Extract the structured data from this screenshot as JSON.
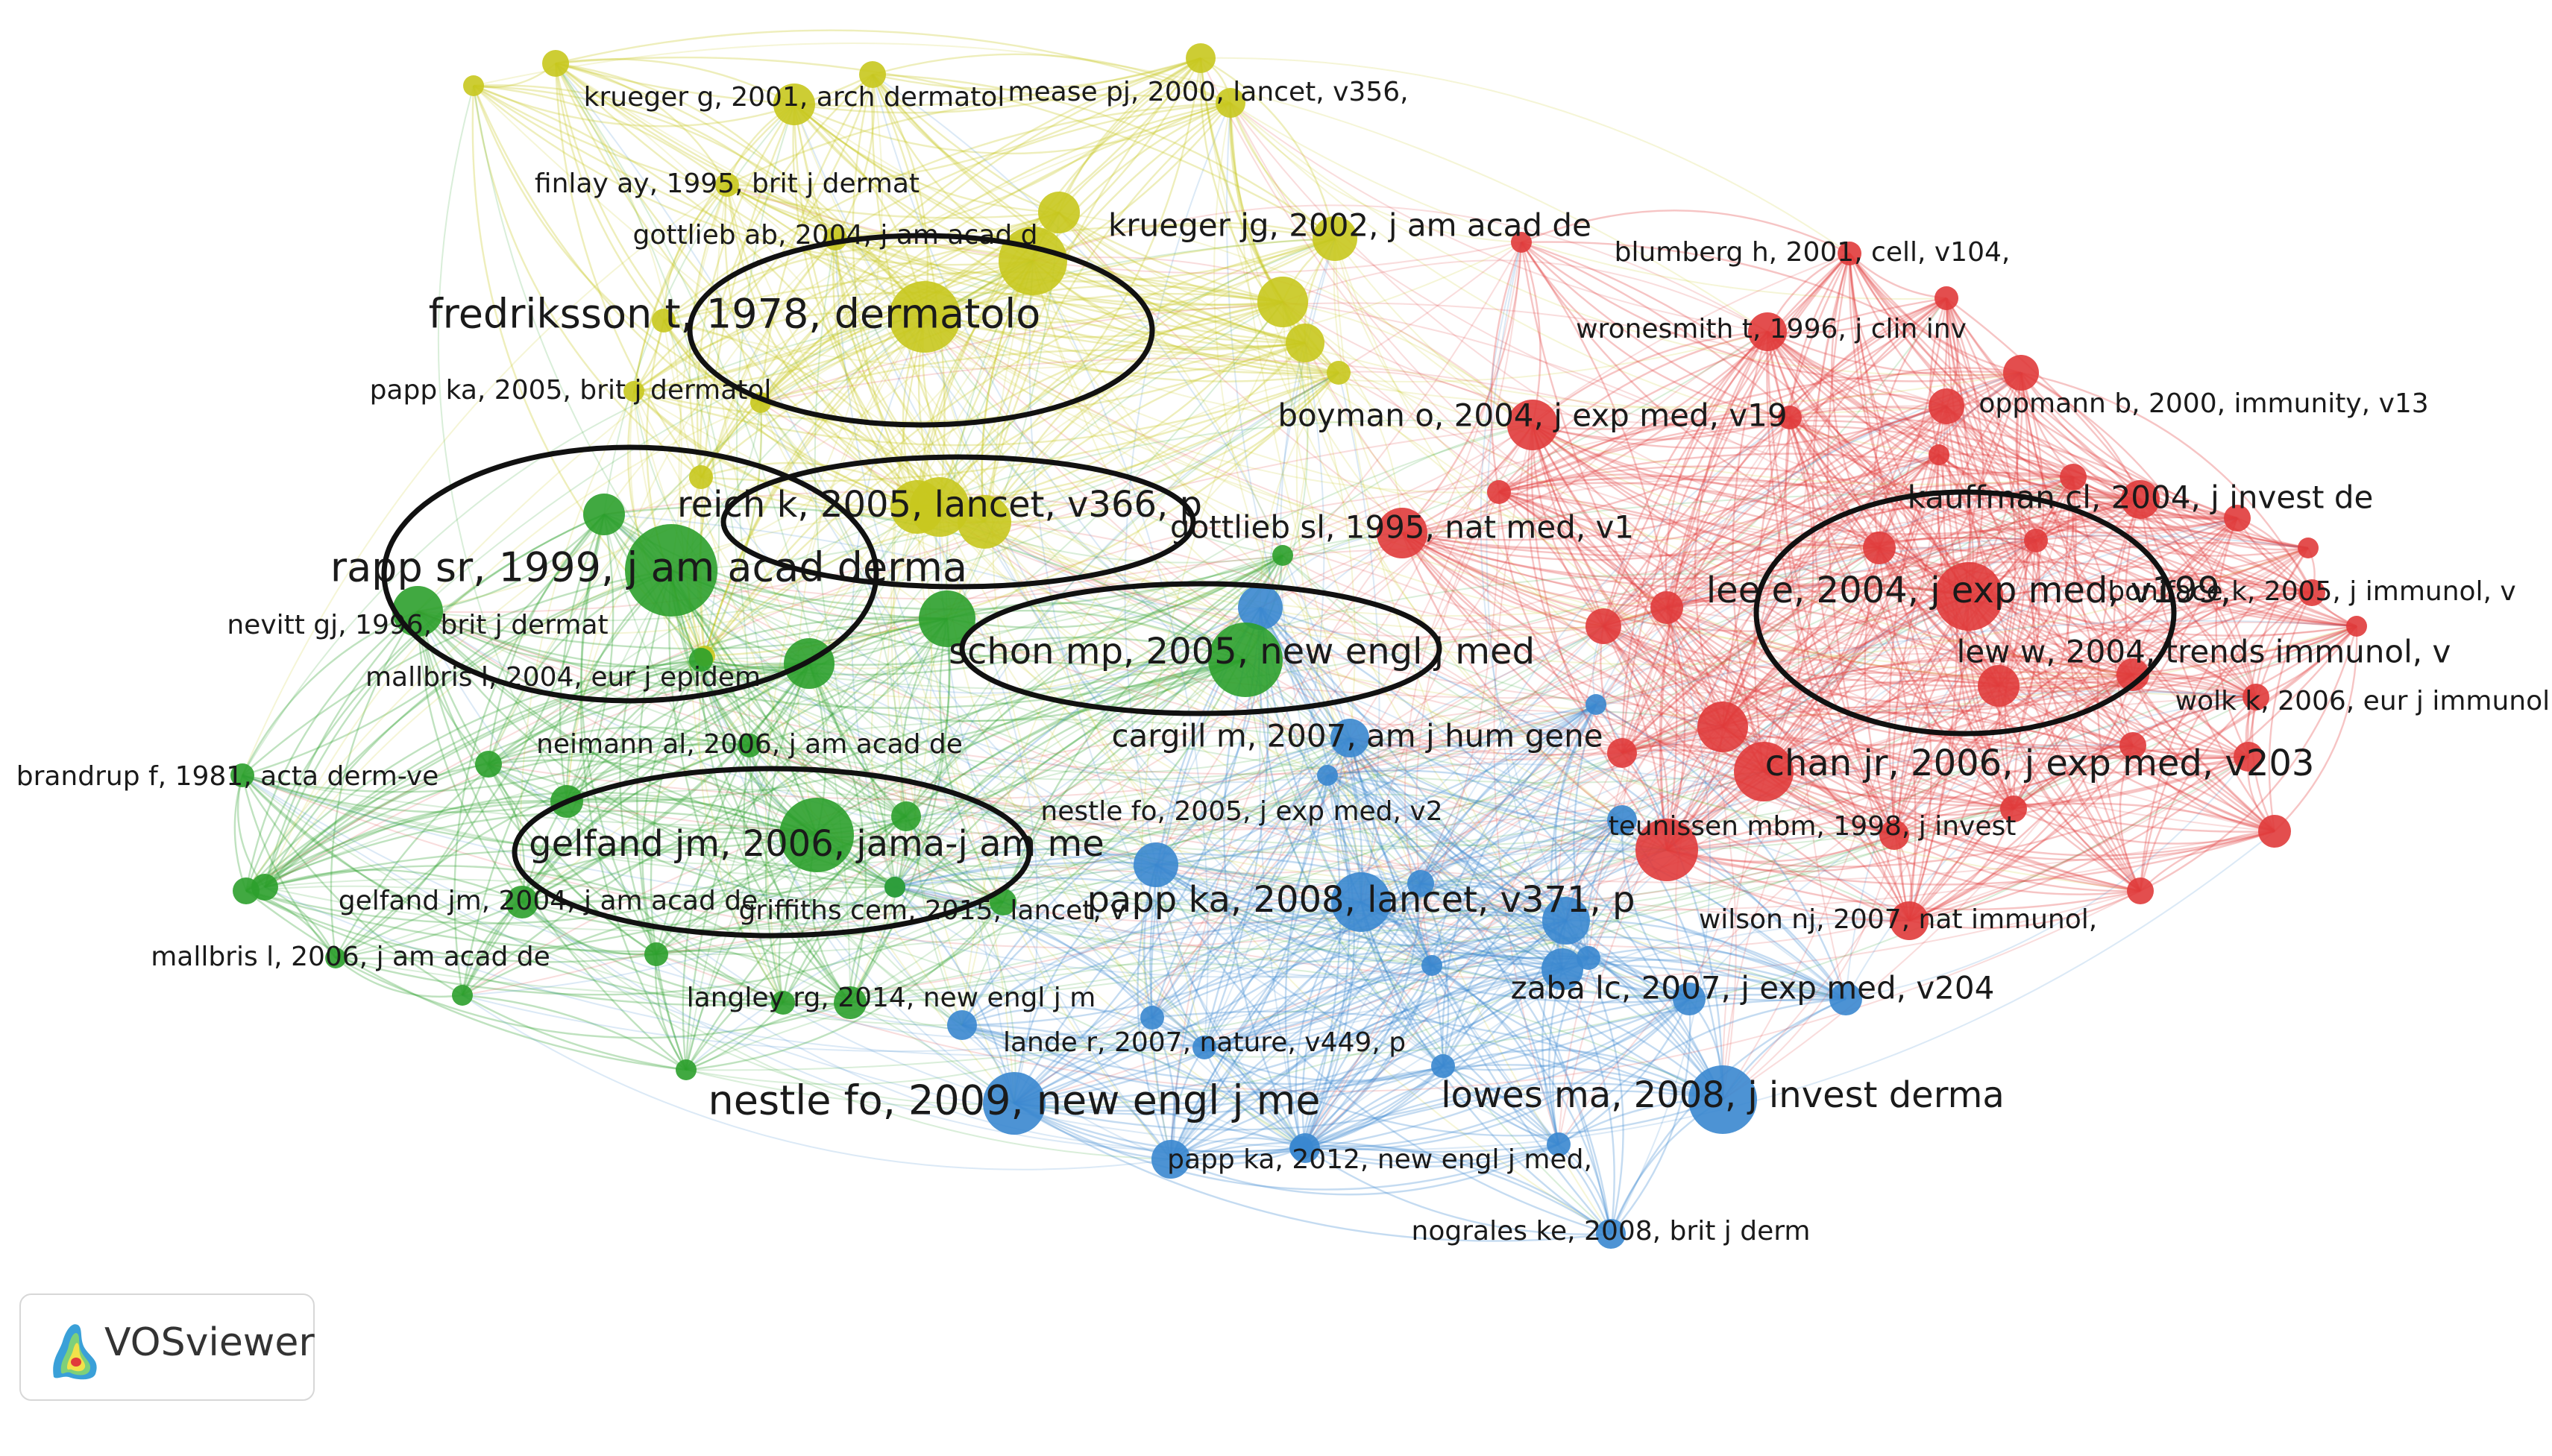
{
  "app_name": "VOSviewer",
  "logo_icon": "vosviewer-density-logo-icon",
  "clusters": {
    "yellow": "#c8c81e",
    "green": "#2ca02c",
    "red": "#e03b3b",
    "blue": "#3a87cf"
  },
  "nodes": [
    {
      "id": "fredriksson",
      "label": "fredriksson t, 1978, dermatolo",
      "cluster": "yellow",
      "weight": 10
    },
    {
      "id": "krueger_g",
      "label": "krueger g, 2001, arch dermatol",
      "cluster": "yellow",
      "weight": 4
    },
    {
      "id": "mease",
      "label": "mease pj, 2000, lancet, v356,",
      "cluster": "yellow",
      "weight": 3
    },
    {
      "id": "finlay",
      "label": "finlay ay, 1995, brit j dermat",
      "cluster": "yellow",
      "weight": 3
    },
    {
      "id": "gottlieb_ab",
      "label": "gottlieb ab, 2004, j am acad d",
      "cluster": "yellow",
      "weight": 3
    },
    {
      "id": "krueger_jg",
      "label": "krueger jg, 2002, j am acad de",
      "cluster": "yellow",
      "weight": 5
    },
    {
      "id": "papp_2005",
      "label": "papp ka, 2005, brit j dermatol",
      "cluster": "yellow",
      "weight": 3
    },
    {
      "id": "reich",
      "label": "reich k, 2005, lancet, v366, p",
      "cluster": "yellow",
      "weight": 7
    },
    {
      "id": "rapp",
      "label": "rapp sr, 1999, j am acad derma",
      "cluster": "green",
      "weight": 10
    },
    {
      "id": "nevitt",
      "label": "nevitt gj, 1996, brit j dermat",
      "cluster": "green",
      "weight": 4
    },
    {
      "id": "mallbris_2004",
      "label": "mallbris l, 2004, eur j epidem",
      "cluster": "green",
      "weight": 3
    },
    {
      "id": "schon",
      "label": "schon mp, 2005, new engl j med",
      "cluster": "green",
      "weight": 8
    },
    {
      "id": "neimann",
      "label": "neimann al, 2006, j am acad de",
      "cluster": "green",
      "weight": 3
    },
    {
      "id": "brandrup",
      "label": "brandrup f, 1981, acta derm-ve",
      "cluster": "green",
      "weight": 3
    },
    {
      "id": "gelfand_2006",
      "label": "gelfand jm, 2006, jama-j am me",
      "cluster": "green",
      "weight": 8
    },
    {
      "id": "gelfand_2004",
      "label": "gelfand jm, 2004, j am acad de",
      "cluster": "green",
      "weight": 4
    },
    {
      "id": "mallbris_2006",
      "label": "mallbris l, 2006, j am acad de",
      "cluster": "green",
      "weight": 3
    },
    {
      "id": "griffiths",
      "label": "griffiths cem, 2015, lancet, v",
      "cluster": "green",
      "weight": 3
    },
    {
      "id": "langley",
      "label": "langley rg, 2014, new engl j m",
      "cluster": "green",
      "weight": 4
    },
    {
      "id": "gottlieb_sl",
      "label": "gottlieb sl, 1995, nat med, v1",
      "cluster": "red",
      "weight": 5
    },
    {
      "id": "blumberg",
      "label": "blumberg h, 2001, cell, v104,",
      "cluster": "red",
      "weight": 3
    },
    {
      "id": "wronesmith",
      "label": "wronesmith t, 1996, j clin inv",
      "cluster": "red",
      "weight": 4
    },
    {
      "id": "boyman",
      "label": "boyman o, 2004, j exp med, v19",
      "cluster": "red",
      "weight": 5
    },
    {
      "id": "oppmann",
      "label": "oppmann b, 2000, immunity, v13",
      "cluster": "red",
      "weight": 4
    },
    {
      "id": "kauffman",
      "label": "kauffman cl, 2004, j invest de",
      "cluster": "red",
      "weight": 5
    },
    {
      "id": "lee",
      "label": "lee e, 2004, j exp med, v199,",
      "cluster": "red",
      "weight": 7
    },
    {
      "id": "boniface",
      "label": "boniface k, 2005, j immunol, v",
      "cluster": "red",
      "weight": 3
    },
    {
      "id": "lew",
      "label": "lew w, 2004, trends immunol, v",
      "cluster": "red",
      "weight": 5
    },
    {
      "id": "wolk",
      "label": "wolk k, 2006, eur j immunol, v",
      "cluster": "red",
      "weight": 3
    },
    {
      "id": "chan",
      "label": "chan jr, 2006, j exp med, v203",
      "cluster": "red",
      "weight": 7
    },
    {
      "id": "teunissen",
      "label": "teunissen mbm, 1998, j invest",
      "cluster": "red",
      "weight": 4
    },
    {
      "id": "wilson",
      "label": "wilson nj, 2007, nat immunol,",
      "cluster": "red",
      "weight": 4
    },
    {
      "id": "cargill",
      "label": "cargill m, 2007, am j hum gene",
      "cluster": "blue",
      "weight": 5
    },
    {
      "id": "nestle_2005",
      "label": "nestle fo, 2005, j exp med, v2",
      "cluster": "blue",
      "weight": 4
    },
    {
      "id": "papp_2008",
      "label": "papp ka, 2008, lancet, v371, p",
      "cluster": "blue",
      "weight": 7
    },
    {
      "id": "zaba",
      "label": "zaba lc, 2007, j exp med, v204",
      "cluster": "blue",
      "weight": 5
    },
    {
      "id": "lande",
      "label": "lande r, 2007, nature, v449, p",
      "cluster": "blue",
      "weight": 3
    },
    {
      "id": "lowes",
      "label": "lowes ma, 2008, j invest derma",
      "cluster": "blue",
      "weight": 8
    },
    {
      "id": "nestle_2009",
      "label": "nestle fo, 2009, new engl j me",
      "cluster": "blue",
      "weight": 9
    },
    {
      "id": "papp_2012",
      "label": "papp ka, 2012, new engl j med,",
      "cluster": "blue",
      "weight": 3
    },
    {
      "id": "nograles",
      "label": "nograles ke, 2008, brit j derm",
      "cluster": "blue",
      "weight": 3
    }
  ]
}
